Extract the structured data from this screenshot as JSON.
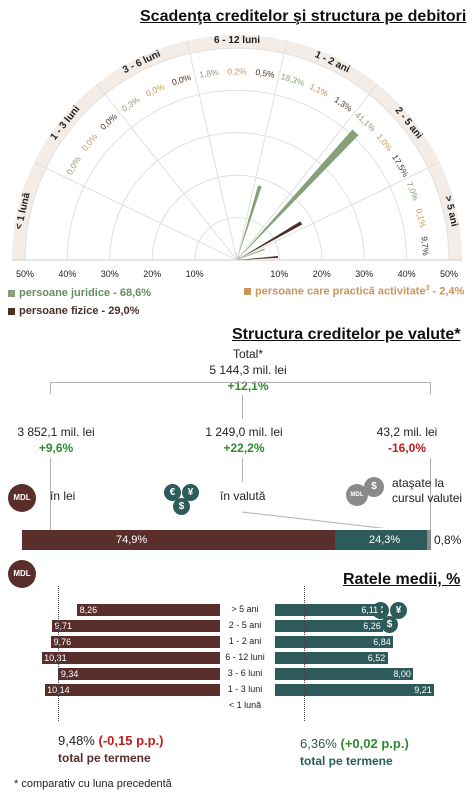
{
  "colors": {
    "juridice": "#87a07a",
    "fizice": "#4a2f26",
    "activitate": "#c9955a",
    "lei": "#5a2e2a",
    "valuta": "#2d5a5a",
    "curs": "#8a8a8a",
    "grid": "#e0e0e0",
    "ringbg": "#f3ece7",
    "positive": "#2e8b2e",
    "negative": "#c01c1c"
  },
  "chart_data": [
    {
      "type": "polar-bar",
      "title": "Scadenţa creditelor şi structura pe debitori",
      "categories": [
        "< 1 lună",
        "1 - 3 luni",
        "3 - 6 luni",
        "6 - 12 luni",
        "1 - 2 ani",
        "2 - 5 ani",
        "> 5 ani"
      ],
      "series": [
        {
          "name": "persoane juridice - 68,6%",
          "values": [
            0.0,
            0.0,
            0.3,
            1.8,
            18.3,
            41.1,
            7.0
          ],
          "labels": [
            "",
            "0,0%",
            "0,3%",
            "1,8%",
            "18,3%",
            "41,1%",
            "7,0%"
          ]
        },
        {
          "name": "persoane care practică activitate",
          "name_sup": "3",
          "name_suffix": " - 2,4%",
          "values": [
            0.0,
            0.0,
            0.0,
            0.2,
            1.1,
            1.0,
            0.1
          ],
          "labels": [
            "",
            "0,0%",
            "0,0%",
            "0,2%",
            "1,1%",
            "1,0%",
            "0,1%"
          ]
        },
        {
          "name": "persoane fizice - 29,0%",
          "values": [
            0.0,
            0.0,
            0.0,
            0.5,
            1.3,
            17.5,
            9.7
          ],
          "labels": [
            "",
            "0,0%",
            "0,0%",
            "0,5%",
            "1,3%",
            "17,5%",
            "9,7%"
          ]
        }
      ],
      "rlim": [
        0,
        50
      ],
      "radial_ticks": [
        "10%",
        "20%",
        "30%",
        "40%",
        "50%"
      ]
    },
    {
      "type": "stacked-bar",
      "title": "Structura creditelor pe valute*",
      "total": {
        "label": "Total*",
        "value": "5 144,3 mil. lei",
        "change": "+12,1%"
      },
      "nodes": [
        {
          "value": "3 852,1 mil. lei",
          "change": "+9,6%",
          "label": "în lei"
        },
        {
          "value": "1 249,0 mil. lei",
          "change": "+22,2%",
          "label": "în valută"
        },
        {
          "value": "43,2 mil. lei",
          "change": "-16,0%",
          "label": "ataşate la cursul valutei"
        }
      ],
      "values": [
        74.9,
        24.3,
        0.8
      ],
      "labels": [
        "74,9%",
        "24,3%",
        "0,8%"
      ]
    },
    {
      "type": "bar",
      "title": "Ratele medii, %",
      "categories": [
        "> 5 ani",
        "2 - 5 ani",
        "1 - 2 ani",
        "6 - 12 luni",
        "3 - 6 luni",
        "1 - 3 luni",
        "< 1 lună"
      ],
      "series": [
        {
          "name": "MDL",
          "values": [
            8.26,
            9.71,
            9.76,
            10.31,
            9.34,
            10.14,
            null
          ],
          "labels": [
            "8,26",
            "9,71",
            "9,76",
            "10,31",
            "9,34",
            "10,14",
            ""
          ]
        },
        {
          "name": "valută",
          "values": [
            6.11,
            6.26,
            6.84,
            6.52,
            8.0,
            9.21,
            null
          ],
          "labels": [
            "6,11",
            "6,26",
            "6,84",
            "6,52",
            "8,00",
            "9,21",
            ""
          ]
        }
      ],
      "totals": [
        {
          "value": "9,48%",
          "change": "(-0,15 p.p.)",
          "label": "total pe termene"
        },
        {
          "value": "6,36%",
          "change": "(+0,02 p.p.)",
          "label": "total pe termene"
        }
      ]
    }
  ],
  "icons": {
    "mdl": "MDL",
    "euro": "€",
    "dollar": "$",
    "yen": "¥"
  },
  "footnote": "* comparativ cu luna precedentă"
}
